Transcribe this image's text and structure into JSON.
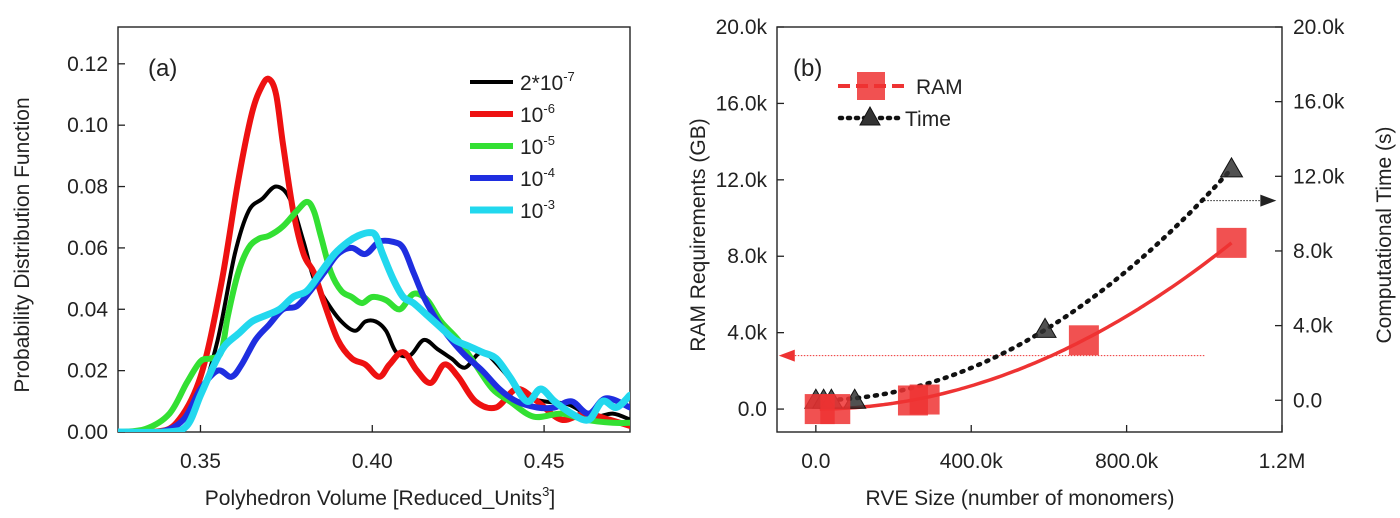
{
  "chart_data": [
    {
      "type": "line",
      "panel_label": "(a)",
      "xlabel": "Polyhedron Volume [Reduced_Units",
      "xlabel_sup": "3",
      "xlabel_end": "]",
      "ylabel": "Probability Distribution Function",
      "xlim": [
        0.326,
        0.475
      ],
      "ylim": [
        0.0,
        0.132
      ],
      "xticks": [
        0.35,
        0.4,
        0.45
      ],
      "xtick_labels": [
        "0.35",
        "0.40",
        "0.45"
      ],
      "yticks": [
        0.0,
        0.02,
        0.04,
        0.06,
        0.08,
        0.1,
        0.12
      ],
      "ytick_labels": [
        "0.00",
        "0.02",
        "0.04",
        "0.06",
        "0.08",
        "0.10",
        "0.12"
      ],
      "legend_position": "upper-right",
      "series": [
        {
          "name": "2*10",
          "name_sup": "-7",
          "color": "#000000",
          "x": [
            0.326,
            0.335,
            0.343,
            0.35,
            0.355,
            0.36,
            0.364,
            0.368,
            0.372,
            0.376,
            0.38,
            0.383,
            0.387,
            0.391,
            0.395,
            0.398,
            0.401,
            0.404,
            0.407,
            0.411,
            0.415,
            0.419,
            0.423,
            0.427,
            0.432,
            0.438,
            0.444,
            0.45,
            0.457,
            0.464,
            0.47,
            0.475
          ],
          "y": [
            0.0,
            0.0,
            0.002,
            0.012,
            0.03,
            0.058,
            0.072,
            0.076,
            0.08,
            0.076,
            0.062,
            0.05,
            0.042,
            0.036,
            0.033,
            0.036,
            0.036,
            0.033,
            0.026,
            0.025,
            0.03,
            0.027,
            0.024,
            0.021,
            0.026,
            0.02,
            0.012,
            0.01,
            0.009,
            0.005,
            0.006,
            0.004
          ]
        },
        {
          "name": "10",
          "name_sup": "-6",
          "color": "#ee1111",
          "x": [
            0.326,
            0.336,
            0.343,
            0.35,
            0.356,
            0.361,
            0.365,
            0.368,
            0.37,
            0.372,
            0.374,
            0.377,
            0.38,
            0.383,
            0.386,
            0.39,
            0.394,
            0.398,
            0.402,
            0.405,
            0.409,
            0.413,
            0.417,
            0.421,
            0.425,
            0.43,
            0.436,
            0.442,
            0.448,
            0.455,
            0.462,
            0.469,
            0.475
          ],
          "y": [
            0.0,
            0.0,
            0.003,
            0.018,
            0.048,
            0.082,
            0.104,
            0.113,
            0.115,
            0.11,
            0.094,
            0.072,
            0.058,
            0.052,
            0.042,
            0.03,
            0.024,
            0.022,
            0.018,
            0.022,
            0.026,
            0.02,
            0.016,
            0.022,
            0.018,
            0.01,
            0.008,
            0.014,
            0.01,
            0.004,
            0.006,
            0.004,
            0.002
          ]
        },
        {
          "name": "10",
          "name_sup": "-5",
          "color": "#33e033",
          "x": [
            0.326,
            0.334,
            0.341,
            0.346,
            0.35,
            0.353,
            0.356,
            0.358,
            0.361,
            0.364,
            0.367,
            0.37,
            0.374,
            0.378,
            0.381,
            0.383,
            0.385,
            0.388,
            0.391,
            0.394,
            0.397,
            0.4,
            0.404,
            0.408,
            0.412,
            0.416,
            0.42,
            0.425,
            0.43,
            0.435,
            0.44,
            0.447,
            0.455,
            0.462,
            0.47,
            0.475
          ],
          "y": [
            0.0,
            0.001,
            0.006,
            0.016,
            0.023,
            0.024,
            0.026,
            0.038,
            0.052,
            0.06,
            0.063,
            0.064,
            0.067,
            0.072,
            0.075,
            0.072,
            0.064,
            0.052,
            0.046,
            0.044,
            0.042,
            0.044,
            0.043,
            0.04,
            0.045,
            0.043,
            0.036,
            0.03,
            0.022,
            0.014,
            0.01,
            0.005,
            0.006,
            0.004,
            0.003,
            0.003
          ]
        },
        {
          "name": "10",
          "name_sup": "-4",
          "color": "#1f2ee0",
          "x": [
            0.326,
            0.338,
            0.345,
            0.35,
            0.355,
            0.359,
            0.362,
            0.366,
            0.37,
            0.374,
            0.378,
            0.382,
            0.386,
            0.39,
            0.394,
            0.398,
            0.402,
            0.406,
            0.409,
            0.412,
            0.415,
            0.419,
            0.423,
            0.427,
            0.432,
            0.437,
            0.442,
            0.448,
            0.453,
            0.458,
            0.463,
            0.468,
            0.475
          ],
          "y": [
            0.0,
            0.0,
            0.004,
            0.014,
            0.02,
            0.018,
            0.022,
            0.03,
            0.035,
            0.04,
            0.041,
            0.046,
            0.052,
            0.058,
            0.06,
            0.058,
            0.062,
            0.062,
            0.06,
            0.052,
            0.044,
            0.036,
            0.03,
            0.025,
            0.02,
            0.014,
            0.01,
            0.008,
            0.008,
            0.01,
            0.006,
            0.011,
            0.008
          ]
        },
        {
          "name": "10",
          "name_sup": "-3",
          "color": "#22d8ee",
          "x": [
            0.326,
            0.34,
            0.346,
            0.35,
            0.354,
            0.357,
            0.361,
            0.365,
            0.369,
            0.373,
            0.377,
            0.381,
            0.385,
            0.389,
            0.393,
            0.396,
            0.399,
            0.401,
            0.403,
            0.406,
            0.409,
            0.412,
            0.416,
            0.42,
            0.424,
            0.428,
            0.432,
            0.436,
            0.44,
            0.445,
            0.449,
            0.453,
            0.458,
            0.463,
            0.467,
            0.471,
            0.475
          ],
          "y": [
            0.0,
            0.0,
            0.002,
            0.012,
            0.022,
            0.028,
            0.032,
            0.036,
            0.038,
            0.04,
            0.044,
            0.046,
            0.052,
            0.058,
            0.062,
            0.064,
            0.065,
            0.064,
            0.058,
            0.05,
            0.044,
            0.042,
            0.038,
            0.034,
            0.03,
            0.028,
            0.026,
            0.024,
            0.018,
            0.01,
            0.014,
            0.01,
            0.006,
            0.004,
            0.01,
            0.008,
            0.012
          ]
        }
      ]
    },
    {
      "type": "scatter",
      "panel_label": "(b)",
      "xlabel": "RVE Size (number of monomers)",
      "ylabel_left": "RAM Requirements (GB)",
      "ylabel_right": "Computational Time (s)",
      "xlim": [
        -100000,
        1200000
      ],
      "ylim_left": [
        -1200,
        20000
      ],
      "ylim_right": [
        -1700,
        20000
      ],
      "xticks": [
        0,
        400000,
        800000,
        1200000
      ],
      "xtick_labels": [
        "0.0",
        "400.0k",
        "800.0k",
        "1.2M"
      ],
      "yticks_left": [
        0,
        4000,
        8000,
        12000,
        16000,
        20000
      ],
      "ytick_labels_left": [
        "0.0",
        "4.0k",
        "8.0k",
        "12.0k",
        "16.0k",
        "20.0k"
      ],
      "yticks_right": [
        0,
        4000,
        8000,
        12000,
        16000,
        20000
      ],
      "ytick_labels_right": [
        "0.0",
        "4.0k",
        "8.0k",
        "12.0k",
        "16.0k",
        "20.0k"
      ],
      "legend_position": "upper-left",
      "series": [
        {
          "name": "RAM",
          "axis": "left",
          "color": "#ee3333",
          "marker": "square",
          "x": [
            10000,
            50000,
            250000,
            280000,
            690000,
            1070000
          ],
          "y": [
            0,
            0,
            450,
            500,
            3600,
            8700
          ],
          "fit": "solid"
        },
        {
          "name": "Time",
          "axis": "right",
          "color": "#333333",
          "marker": "triangle",
          "x": [
            0,
            20000,
            40000,
            100000,
            590000,
            1070000
          ],
          "y": [
            0,
            0,
            0,
            0,
            3800,
            12400
          ],
          "fit": "dotted"
        }
      ],
      "annotations": [
        {
          "type": "arrow",
          "direction": "left",
          "color": "#ee3333",
          "y": 2800,
          "x_from": 1000000,
          "x_to": -80000,
          "axis": "left"
        },
        {
          "type": "arrow",
          "direction": "right",
          "color": "#222222",
          "y": 10700,
          "x_from": 1000000,
          "x_to": 1170000,
          "axis": "right"
        }
      ]
    }
  ]
}
